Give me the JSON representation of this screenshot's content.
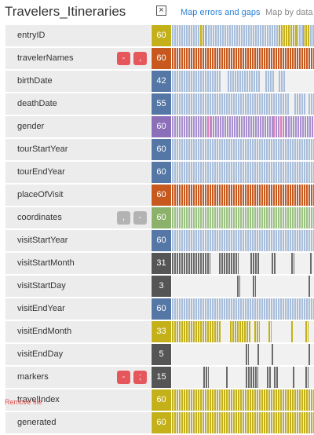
{
  "header": {
    "title": "Travelers_Itineraries",
    "close_label": "×",
    "map_errors_label": "Map errors and gaps",
    "map_type_label": "Map by data ty"
  },
  "footer": {
    "remove_label": "Remove file"
  },
  "colors": {
    "gold": "#c4b11a",
    "orange": "#c8591e",
    "blue": "#5577a6",
    "purple": "#8c6fb9",
    "green": "#8bb16a",
    "darkgray": "#555555",
    "bar_blue": "#a8bedb",
    "bar_gold": "#c4b11a",
    "bar_orange": "#c8591e",
    "bar_purple": "#a890cf",
    "bar_green": "#9cc283",
    "bar_gray": "#6b6b6b",
    "pink": "#e07ab8"
  },
  "rows": [
    {
      "name": "entryID",
      "count": "60",
      "color": "gold",
      "bar": "bar_gold",
      "segments": [
        [
          0,
          0.2,
          "bar_blue"
        ],
        [
          0.2,
          0.24,
          "bar_gold"
        ],
        [
          0.24,
          0.75,
          "bar_blue"
        ],
        [
          0.75,
          0.88,
          "bar_gold"
        ],
        [
          0.88,
          0.92,
          "bar_blue"
        ],
        [
          0.92,
          0.97,
          "bar_gold"
        ],
        [
          0.97,
          1,
          "bar_blue"
        ]
      ]
    },
    {
      "name": "travelerNames",
      "count": "60",
      "color": "orange",
      "badges": [
        [
          "-",
          "red"
        ],
        [
          ",",
          "red"
        ]
      ],
      "segments": [
        [
          0,
          1,
          "bar_orange"
        ]
      ]
    },
    {
      "name": "birthDate",
      "count": "42",
      "color": "blue",
      "segments": [
        [
          0,
          0.35,
          "bar_blue"
        ],
        [
          0.39,
          0.62,
          "bar_blue"
        ],
        [
          0.66,
          0.72,
          "bar_blue"
        ],
        [
          0.75,
          0.8,
          "bar_blue"
        ]
      ]
    },
    {
      "name": "deathDate",
      "count": "55",
      "color": "blue",
      "segments": [
        [
          0,
          0.83,
          "bar_blue"
        ],
        [
          0.86,
          0.94,
          "bar_blue"
        ],
        [
          0.96,
          1,
          "bar_blue"
        ]
      ]
    },
    {
      "name": "gender",
      "count": "60",
      "color": "purple",
      "segments": [
        [
          0,
          0.25,
          "bar_purple"
        ],
        [
          0.25,
          0.27,
          "pink"
        ],
        [
          0.27,
          0.71,
          "bar_purple"
        ],
        [
          0.71,
          0.73,
          "pink"
        ],
        [
          0.73,
          0.76,
          "bar_purple"
        ],
        [
          0.76,
          0.8,
          "pink"
        ],
        [
          0.8,
          1,
          "bar_purple"
        ]
      ]
    },
    {
      "name": "tourStartYear",
      "count": "60",
      "color": "blue",
      "segments": [
        [
          0,
          1,
          "bar_blue"
        ]
      ]
    },
    {
      "name": "tourEndYear",
      "count": "60",
      "color": "blue",
      "segments": [
        [
          0,
          1,
          "bar_blue"
        ]
      ]
    },
    {
      "name": "placeOfVisit",
      "count": "60",
      "color": "orange",
      "segments": [
        [
          0,
          1,
          "bar_orange"
        ]
      ]
    },
    {
      "name": "coordinates",
      "count": "60",
      "color": "green",
      "badges": [
        [
          ",",
          "gray"
        ],
        [
          "-",
          "gray"
        ]
      ],
      "segments": [
        [
          0,
          1,
          "bar_green"
        ]
      ]
    },
    {
      "name": "visitStartYear",
      "count": "60",
      "color": "blue",
      "segments": [
        [
          0,
          1,
          "bar_blue"
        ]
      ]
    },
    {
      "name": "visitStartMonth",
      "count": "31",
      "color": "darkgray",
      "segments": [
        [
          0,
          0.27,
          "bar_gray"
        ],
        [
          0.33,
          0.47,
          "bar_gray"
        ],
        [
          0.55,
          0.62,
          "bar_gray"
        ],
        [
          0.7,
          0.73,
          "bar_gray"
        ],
        [
          0.84,
          0.86,
          "bar_gray"
        ],
        [
          0.97,
          0.99,
          "bar_gray"
        ]
      ]
    },
    {
      "name": "visitStartDay",
      "count": "3",
      "color": "darkgray",
      "segments": [
        [
          0.46,
          0.48,
          "bar_gray"
        ],
        [
          0.57,
          0.59,
          "bar_gray"
        ],
        [
          0.96,
          0.98,
          "bar_gray"
        ]
      ]
    },
    {
      "name": "visitEndYear",
      "count": "60",
      "color": "blue",
      "segments": [
        [
          0,
          1,
          "bar_blue"
        ]
      ]
    },
    {
      "name": "visitEndMonth",
      "count": "33",
      "color": "gold",
      "segments": [
        [
          0,
          0.35,
          "bar_gold"
        ],
        [
          0.41,
          0.55,
          "bar_gold"
        ],
        [
          0.58,
          0.62,
          "bar_gold"
        ],
        [
          0.68,
          0.7,
          "bar_gold"
        ],
        [
          0.84,
          0.85,
          "bar_gold"
        ],
        [
          0.94,
          0.96,
          "bar_gold"
        ]
      ]
    },
    {
      "name": "visitEndDay",
      "count": "5",
      "color": "darkgray",
      "segments": [
        [
          0.52,
          0.54,
          "bar_gray"
        ],
        [
          0.6,
          0.62,
          "bar_gray"
        ],
        [
          0.7,
          0.72,
          "bar_gray"
        ],
        [
          0.96,
          0.98,
          "bar_gray"
        ]
      ]
    },
    {
      "name": "markers",
      "count": "15",
      "color": "darkgray",
      "badges": [
        [
          "-",
          "red"
        ],
        [
          ";",
          "red"
        ]
      ],
      "segments": [
        [
          0.22,
          0.26,
          "bar_gray"
        ],
        [
          0.38,
          0.4,
          "bar_gray"
        ],
        [
          0.52,
          0.61,
          "bar_gray"
        ],
        [
          0.67,
          0.7,
          "bar_gray"
        ],
        [
          0.72,
          0.75,
          "bar_gray"
        ],
        [
          0.85,
          0.87,
          "bar_gray"
        ],
        [
          0.94,
          0.96,
          "bar_gray"
        ]
      ]
    },
    {
      "name": "travelIndex",
      "count": "60",
      "color": "gold",
      "segments": [
        [
          0,
          1,
          "bar_gold"
        ]
      ]
    },
    {
      "name": "generated",
      "count": "60",
      "color": "gold",
      "segments": [
        [
          0,
          1,
          "bar_gold"
        ]
      ]
    }
  ]
}
